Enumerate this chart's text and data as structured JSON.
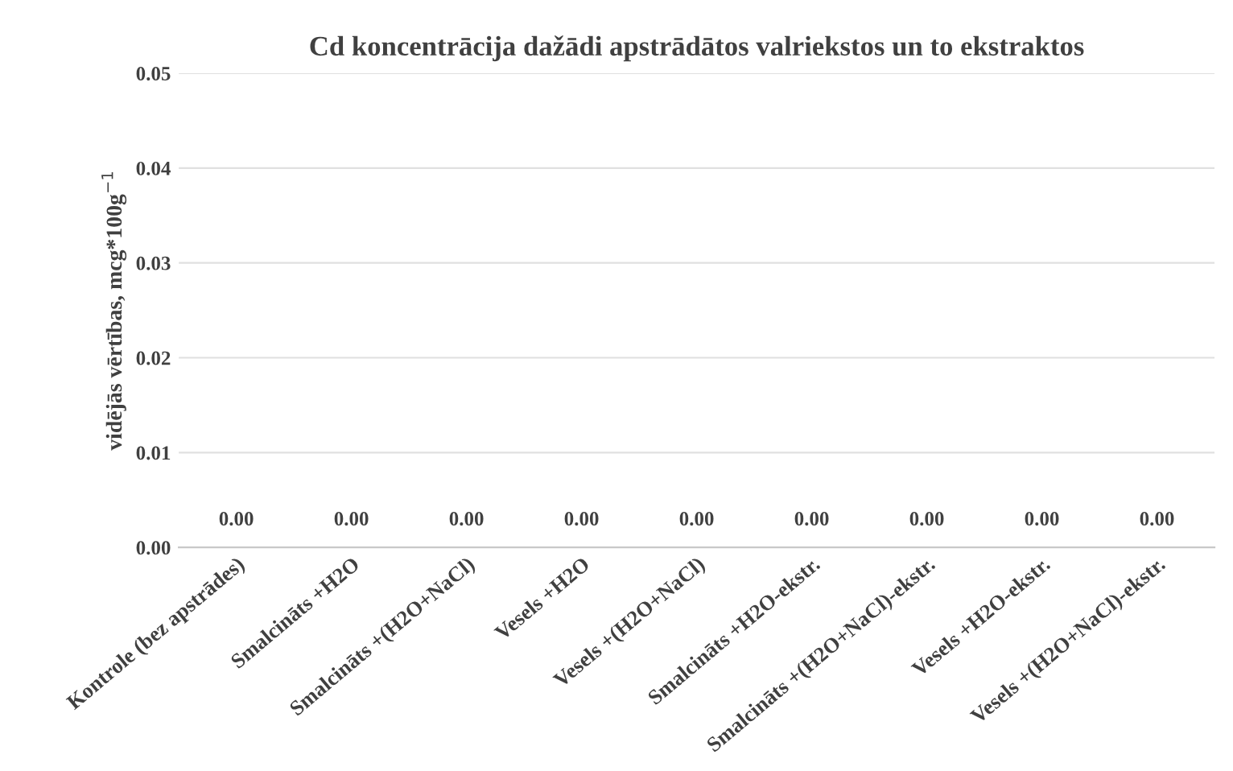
{
  "chart_data": {
    "type": "bar",
    "title": "Cd koncentrācija dažādi apstrādātos valriekstos un to ekstraktos",
    "ylabel": "vidējās vērtības, mcg*100g$^{−1}$",
    "categories": [
      "Kontrole (bez apstrādes)",
      "Smalcināts +H2O",
      "Smalcināts +(H2O+NaCl)",
      "Vesels +H2O",
      "Vesels +(H2O+NaCl)",
      "Smalcināts +H2O-ekstr.",
      "Smalcināts +(H2O+NaCl)-ekstr.",
      "Vesels +H2O-ekstr.",
      "Vesels +(H2O+NaCl)-ekstr."
    ],
    "values": [
      0,
      0,
      0,
      0,
      0,
      0,
      0,
      0,
      0
    ],
    "value_labels": [
      "0.00",
      "0.00",
      "0.00",
      "0.00",
      "0.00",
      "0.00",
      "0.00",
      "0.00",
      "0.00"
    ],
    "ylim": [
      0,
      0.05
    ],
    "yticks": [
      {
        "value": 0,
        "label": "0.00"
      },
      {
        "value": 0.01,
        "label": "0.01"
      },
      {
        "value": 0.02,
        "label": "0.02"
      },
      {
        "value": 0.03,
        "label": "0.03"
      },
      {
        "value": 0.04,
        "label": "0.04"
      },
      {
        "value": 0.05,
        "label": "0.05"
      }
    ],
    "grid": "y",
    "legend": false
  }
}
